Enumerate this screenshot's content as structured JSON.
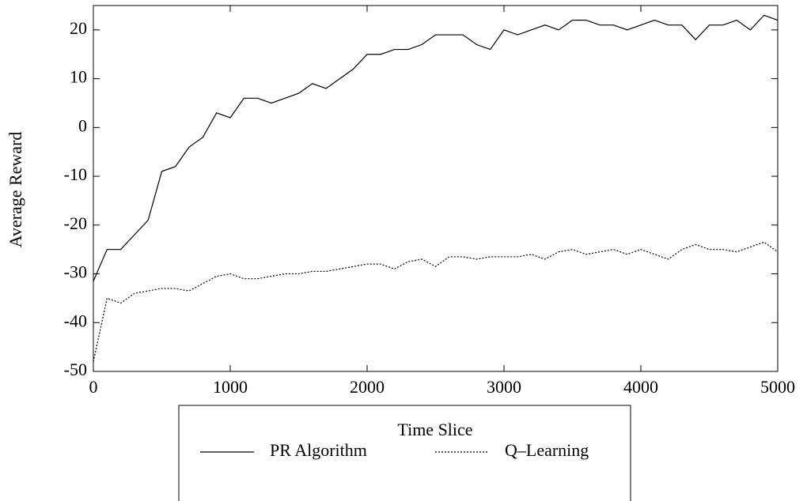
{
  "chart_data": {
    "type": "line",
    "x_label": "Time Slice",
    "y_label": "Average Reward",
    "x": [
      0,
      100,
      200,
      300,
      400,
      500,
      600,
      700,
      800,
      900,
      1000,
      1100,
      1200,
      1300,
      1400,
      1500,
      1600,
      1700,
      1800,
      1900,
      2000,
      2100,
      2200,
      2300,
      2400,
      2500,
      2600,
      2700,
      2800,
      2900,
      3000,
      3100,
      3200,
      3300,
      3400,
      3500,
      3600,
      3700,
      3800,
      3900,
      4000,
      4100,
      4200,
      4300,
      4400,
      4500,
      4600,
      4700,
      4800,
      4900,
      5000
    ],
    "series": [
      {
        "name": "PR Algorithm",
        "color": "#000000",
        "dash": "solid",
        "values": [
          -31.5,
          -25,
          -25,
          -22,
          -19,
          -9,
          -8,
          -4,
          -2,
          3,
          2,
          6,
          6,
          5,
          6,
          7,
          9,
          8,
          10,
          12,
          15,
          15,
          16,
          16,
          17,
          19,
          19,
          19,
          17,
          16,
          20,
          19,
          20,
          21,
          20,
          22,
          22,
          21,
          21,
          20,
          21,
          22,
          21,
          21,
          18,
          21,
          21,
          22,
          20,
          23,
          22
        ]
      },
      {
        "name": "Q–Learning",
        "color": "#000000",
        "dash": "dotted",
        "values": [
          -48,
          -35,
          -36,
          -34,
          -33.5,
          -33,
          -33,
          -33.5,
          -32,
          -30.5,
          -30,
          -31,
          -31,
          -30.5,
          -30,
          -30,
          -29.5,
          -29.5,
          -29,
          -28.5,
          -28,
          -28,
          -29,
          -27.5,
          -27,
          -28.5,
          -26.5,
          -26.5,
          -27,
          -26.5,
          -26.5,
          -26.5,
          -26,
          -27,
          -25.5,
          -25,
          -26,
          -25.5,
          -25,
          -26,
          -25,
          -26,
          -27,
          -25,
          -24,
          -25,
          -25,
          -25.5,
          -24.5,
          -23.5,
          -25.5
        ]
      }
    ],
    "xlim": [
      0,
      5000
    ],
    "xticks": [
      0,
      1000,
      2000,
      3000,
      4000,
      5000
    ],
    "ylim": [
      -50,
      25
    ],
    "yticks": [
      -50,
      -40,
      -30,
      -20,
      -10,
      0,
      10,
      20
    ],
    "grid": false
  }
}
